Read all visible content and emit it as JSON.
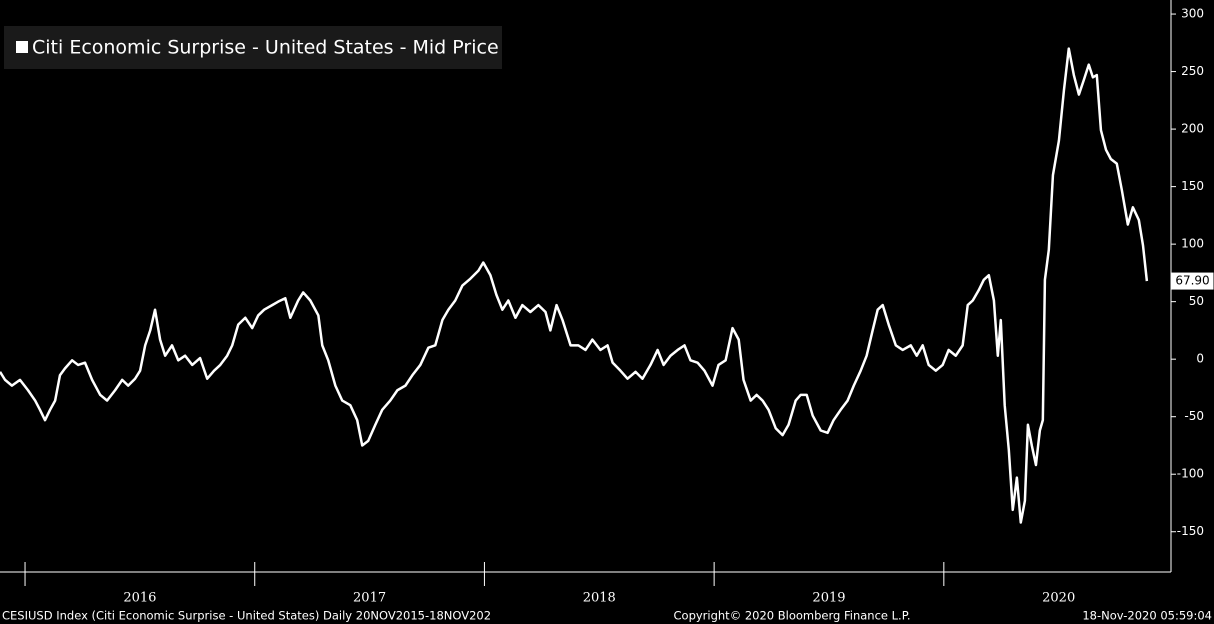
{
  "chart_data": {
    "type": "line",
    "title": "Citi Economic Surprise - United States - Mid Price",
    "footer_left": "CESIUSD Index (Citi Economic Surprise - United States)  Daily 20NOV2015-18NOV202",
    "footer_center": "Copyright© 2020 Bloomberg Finance L.P.",
    "footer_right": "18-Nov-2020 05:59:04",
    "last_price_label": "67.90",
    "xlim": [
      2015.891,
      2020.989
    ],
    "xticks": [
      {
        "value": 2016.5,
        "label": "2016"
      },
      {
        "value": 2017.5,
        "label": "2017"
      },
      {
        "value": 2018.5,
        "label": "2018"
      },
      {
        "value": 2019.5,
        "label": "2019"
      },
      {
        "value": 2020.5,
        "label": "2020"
      }
    ],
    "ylim": [
      -185,
      307
    ],
    "yticks": [
      300,
      250,
      200,
      150,
      100,
      50,
      0,
      -50,
      -100,
      -150
    ],
    "series": [
      {
        "name": "Citi Economic Surprise - United States - Mid Price",
        "color": "#ffffff",
        "x": [
          2015.891,
          2015.913,
          2015.943,
          2015.978,
          2016.013,
          2016.044,
          2016.065,
          2016.087,
          2016.109,
          2016.131,
          2016.152,
          2016.174,
          2016.205,
          2016.231,
          2016.261,
          2016.292,
          2016.327,
          2016.357,
          2016.392,
          2016.423,
          2016.449,
          2016.479,
          2016.501,
          2016.523,
          2016.545,
          2016.566,
          2016.588,
          2016.61,
          2016.64,
          2016.667,
          2016.697,
          2016.728,
          2016.762,
          2016.793,
          2016.823,
          2016.85,
          2016.88,
          2016.902,
          2016.928,
          2016.959,
          2016.989,
          2017.015,
          2017.041,
          2017.076,
          2017.102,
          2017.133,
          2017.155,
          2017.189,
          2017.211,
          2017.242,
          2017.277,
          2017.294,
          2017.32,
          2017.351,
          2017.381,
          2017.416,
          2017.446,
          2017.468,
          2017.494,
          2017.525,
          2017.555,
          2017.59,
          2017.621,
          2017.656,
          2017.686,
          2017.721,
          2017.756,
          2017.786,
          2017.817,
          2017.843,
          2017.873,
          2017.904,
          2017.939,
          2017.974,
          2017.995,
          2018.026,
          2018.052,
          2018.078,
          2018.104,
          2018.135,
          2018.165,
          2018.2,
          2018.235,
          2018.266,
          2018.287,
          2018.314,
          2018.34,
          2018.375,
          2018.409,
          2018.44,
          2018.47,
          2018.505,
          2018.536,
          2018.558,
          2018.592,
          2018.623,
          2018.658,
          2018.688,
          2018.723,
          2018.754,
          2018.78,
          2018.81,
          2018.841,
          2018.871,
          2018.897,
          2018.928,
          2018.958,
          2018.993,
          2019.019,
          2019.05,
          2019.08,
          2019.107,
          2019.128,
          2019.159,
          2019.185,
          2019.211,
          2019.237,
          2019.268,
          2019.298,
          2019.324,
          2019.355,
          2019.377,
          2019.403,
          2019.429,
          2019.464,
          2019.494,
          2019.52,
          2019.551,
          2019.581,
          2019.608,
          2019.638,
          2019.664,
          2019.69,
          2019.712,
          2019.734,
          2019.76,
          2019.791,
          2019.821,
          2019.856,
          2019.882,
          2019.908,
          2019.934,
          2019.965,
          2019.995,
          2020.021,
          2020.052,
          2020.082,
          2020.104,
          2020.126,
          2020.152,
          2020.174,
          2020.196,
          2020.218,
          2020.235,
          2020.248,
          2020.265,
          2020.283,
          2020.3,
          2020.318,
          2020.335,
          2020.353,
          2020.366,
          2020.383,
          2020.401,
          2020.418,
          2020.431,
          2020.44,
          2020.457,
          2020.475,
          2020.501,
          2020.523,
          2020.544,
          2020.566,
          2020.588,
          2020.61,
          2020.631,
          2020.649,
          2020.666,
          2020.684,
          2020.706,
          2020.727,
          2020.753,
          2020.775,
          2020.801,
          2020.823,
          2020.849,
          2020.867,
          2020.884
        ],
        "values": [
          -11,
          -18,
          -23,
          -18,
          -27,
          -36,
          -44,
          -53,
          -44,
          -36,
          -14,
          -8,
          -1,
          -5,
          -3,
          -18,
          -31,
          -36,
          -27,
          -18,
          -23,
          -17,
          -10,
          12,
          25,
          43,
          17,
          3,
          12,
          -1,
          3,
          -5,
          1,
          -17,
          -10,
          -5,
          3,
          12,
          30,
          36,
          27,
          38,
          43,
          47,
          50,
          53,
          36,
          51,
          58,
          51,
          38,
          12,
          -1,
          -23,
          -36,
          -40,
          -53,
          -75,
          -71,
          -57,
          -44,
          -36,
          -27,
          -23,
          -14,
          -5,
          10,
          12,
          34,
          43,
          51,
          64,
          70,
          77,
          84,
          73,
          56,
          43,
          51,
          36,
          47,
          41,
          47,
          41,
          25,
          47,
          34,
          12,
          12,
          8,
          17,
          8,
          12,
          -3,
          -10,
          -17,
          -11,
          -17,
          -5,
          8,
          -5,
          3,
          8,
          12,
          -1,
          -3,
          -10,
          -23,
          -5,
          -1,
          27,
          17,
          -18,
          -36,
          -31,
          -36,
          -44,
          -60,
          -66,
          -57,
          -36,
          -31,
          -31,
          -49,
          -62,
          -64,
          -53,
          -44,
          -36,
          -23,
          -10,
          3,
          25,
          43,
          47,
          30,
          12,
          8,
          12,
          3,
          12,
          -5,
          -10,
          -5,
          8,
          3,
          12,
          47,
          51,
          60,
          69,
          73,
          51,
          3,
          34,
          -40,
          -79,
          -131,
          -103,
          -142,
          -123,
          -57,
          -75,
          -92,
          -62,
          -53,
          69,
          95,
          160,
          190,
          234,
          270,
          247,
          230,
          243,
          256,
          245,
          247,
          199,
          182,
          174,
          170,
          147,
          117,
          132,
          121,
          99,
          67.9
        ]
      }
    ]
  }
}
